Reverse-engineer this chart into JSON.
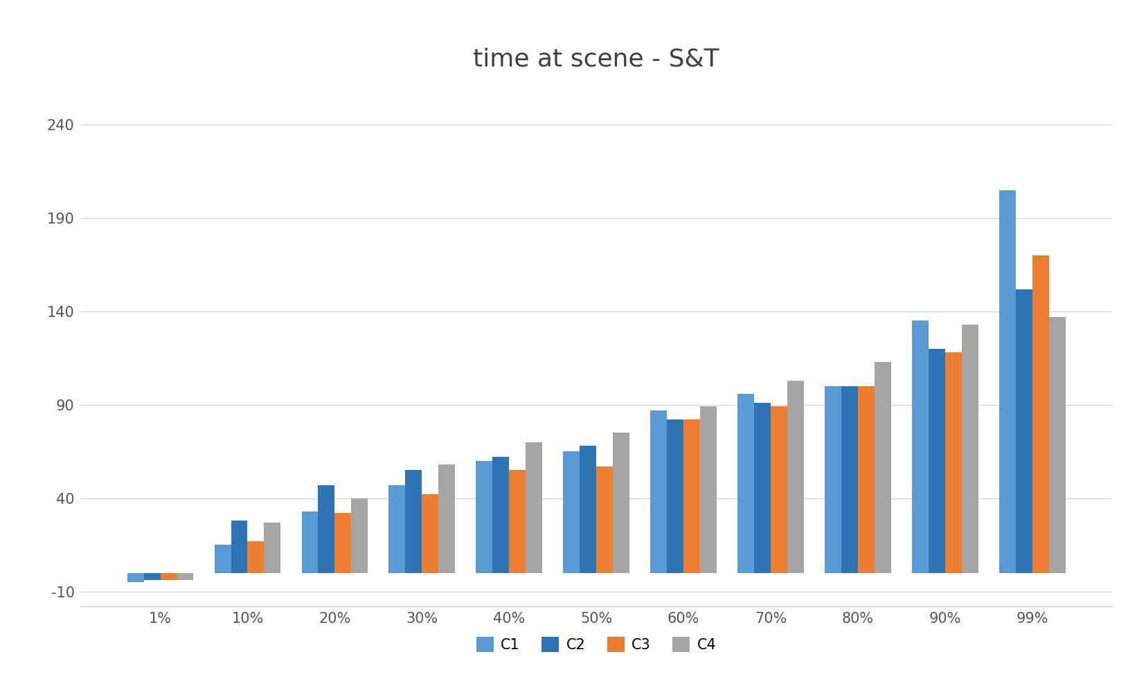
{
  "title": "time at scene - S&T",
  "categories": [
    "1%",
    "10%",
    "20%",
    "30%",
    "40%",
    "50%",
    "60%",
    "70%",
    "80%",
    "90%",
    "99%"
  ],
  "series": {
    "C1": [
      -5,
      15,
      33,
      47,
      60,
      65,
      87,
      96,
      100,
      135,
      205
    ],
    "C2": [
      -4,
      28,
      47,
      55,
      62,
      68,
      82,
      91,
      100,
      120,
      152
    ],
    "C3": [
      -4,
      17,
      32,
      42,
      55,
      57,
      82,
      89,
      100,
      118,
      170
    ],
    "C4": [
      -4,
      27,
      40,
      58,
      70,
      75,
      89,
      103,
      113,
      133,
      137
    ]
  },
  "colors": {
    "C1": "#5B9BD5",
    "C2": "#2E74B5",
    "C3": "#ED7D31",
    "C4": "#A5A5A5"
  },
  "ylim": [
    -18,
    262
  ],
  "yticks": [
    -10,
    40,
    90,
    140,
    190,
    240
  ],
  "background_color": "#FFFFFF",
  "grid_color": "#D3D3D3",
  "title_fontsize": 26,
  "tick_fontsize": 15,
  "legend_fontsize": 15,
  "bar_width": 0.19
}
